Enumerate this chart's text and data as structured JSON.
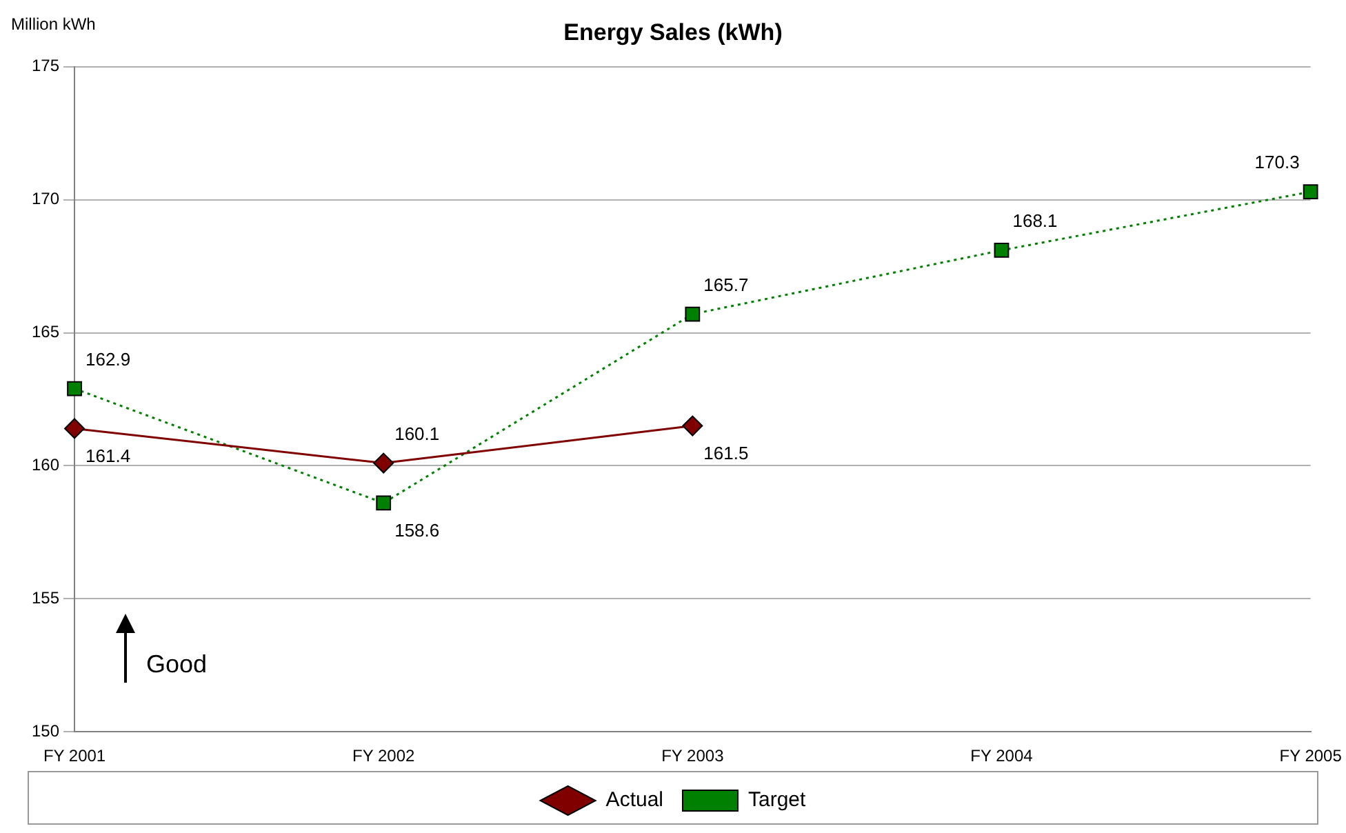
{
  "chart_data": {
    "type": "line",
    "title": "Energy Sales (kWh)",
    "ylabel": "Million kWh",
    "categories": [
      "FY 2001",
      "FY 2002",
      "FY 2003",
      "FY 2004",
      "FY 2005"
    ],
    "series": [
      {
        "name": "Actual",
        "color": "#800000",
        "values": [
          161.4,
          160.1,
          161.5,
          null,
          null
        ],
        "marker": "diamond",
        "line_style": "solid"
      },
      {
        "name": "Target",
        "color": "#008000",
        "values": [
          162.9,
          158.6,
          165.7,
          168.1,
          170.3
        ],
        "marker": "square",
        "line_style": "dotted"
      }
    ],
    "ylim": [
      150,
      175
    ],
    "yticks": [
      150,
      155,
      160,
      165,
      170,
      175
    ],
    "grid": "y",
    "legend": "bottom",
    "data_labels": true,
    "annotations": [
      "Good"
    ]
  }
}
